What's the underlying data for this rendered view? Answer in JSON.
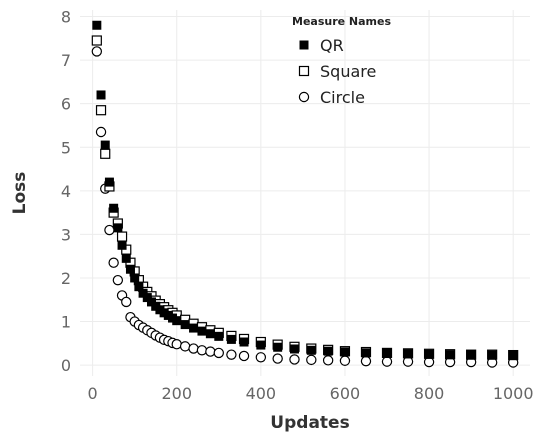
{
  "chart_data": {
    "type": "scatter",
    "title": "",
    "xlabel": "Updates",
    "ylabel": "Loss",
    "xlim": [
      -30,
      1040
    ],
    "ylim": [
      -0.25,
      8.15
    ],
    "xticks": [
      0,
      200,
      400,
      600,
      800,
      1000
    ],
    "yticks": [
      0,
      1,
      2,
      3,
      4,
      5,
      6,
      7,
      8
    ],
    "grid": true,
    "legend": {
      "title": "Measure Names",
      "placement": "top-right",
      "entries": [
        "QR",
        "Square",
        "Circle"
      ]
    },
    "series": [
      {
        "name": "QR",
        "marker": "filled-square",
        "color": "#000000",
        "x": [
          10,
          20,
          30,
          40,
          50,
          60,
          70,
          80,
          90,
          100,
          110,
          120,
          130,
          140,
          150,
          160,
          170,
          180,
          190,
          200,
          220,
          240,
          260,
          280,
          300,
          330,
          360,
          400,
          440,
          480,
          520,
          560,
          600,
          650,
          700,
          750,
          800,
          850,
          900,
          950,
          1000
        ],
        "y": [
          7.8,
          6.2,
          5.05,
          4.2,
          3.6,
          3.15,
          2.75,
          2.45,
          2.2,
          2.0,
          1.8,
          1.65,
          1.55,
          1.45,
          1.35,
          1.27,
          1.2,
          1.14,
          1.08,
          1.02,
          0.93,
          0.85,
          0.78,
          0.72,
          0.66,
          0.59,
          0.53,
          0.46,
          0.41,
          0.37,
          0.34,
          0.32,
          0.3,
          0.28,
          0.27,
          0.26,
          0.25,
          0.24,
          0.24,
          0.23,
          0.23
        ]
      },
      {
        "name": "Square",
        "marker": "open-square",
        "color": "#000000",
        "x": [
          10,
          20,
          30,
          40,
          50,
          60,
          70,
          80,
          90,
          100,
          110,
          120,
          130,
          140,
          150,
          160,
          170,
          180,
          190,
          200,
          220,
          240,
          260,
          280,
          300,
          330,
          360,
          400,
          440,
          480,
          520,
          560,
          600,
          650,
          700,
          750,
          800,
          850,
          900,
          950,
          1000
        ],
        "y": [
          7.45,
          5.85,
          4.85,
          4.1,
          3.5,
          3.25,
          2.95,
          2.65,
          2.35,
          2.15,
          1.95,
          1.8,
          1.68,
          1.58,
          1.48,
          1.4,
          1.33,
          1.26,
          1.2,
          1.14,
          1.04,
          0.95,
          0.87,
          0.8,
          0.74,
          0.67,
          0.6,
          0.53,
          0.47,
          0.42,
          0.38,
          0.35,
          0.32,
          0.3,
          0.28,
          0.27,
          0.26,
          0.25,
          0.24,
          0.24,
          0.23
        ]
      },
      {
        "name": "Circle",
        "marker": "open-circle",
        "color": "#000000",
        "x": [
          10,
          20,
          30,
          40,
          50,
          60,
          70,
          80,
          90,
          100,
          110,
          120,
          130,
          140,
          150,
          160,
          170,
          180,
          190,
          200,
          220,
          240,
          260,
          280,
          300,
          330,
          360,
          400,
          440,
          480,
          520,
          560,
          600,
          650,
          700,
          750,
          800,
          850,
          900,
          950,
          1000
        ],
        "y": [
          7.2,
          5.35,
          4.05,
          3.1,
          2.35,
          1.95,
          1.6,
          1.45,
          1.1,
          1.0,
          0.92,
          0.86,
          0.8,
          0.74,
          0.68,
          0.63,
          0.58,
          0.55,
          0.51,
          0.48,
          0.43,
          0.38,
          0.34,
          0.31,
          0.28,
          0.24,
          0.21,
          0.18,
          0.15,
          0.13,
          0.12,
          0.11,
          0.1,
          0.09,
          0.08,
          0.08,
          0.07,
          0.07,
          0.07,
          0.06,
          0.06
        ]
      }
    ]
  }
}
